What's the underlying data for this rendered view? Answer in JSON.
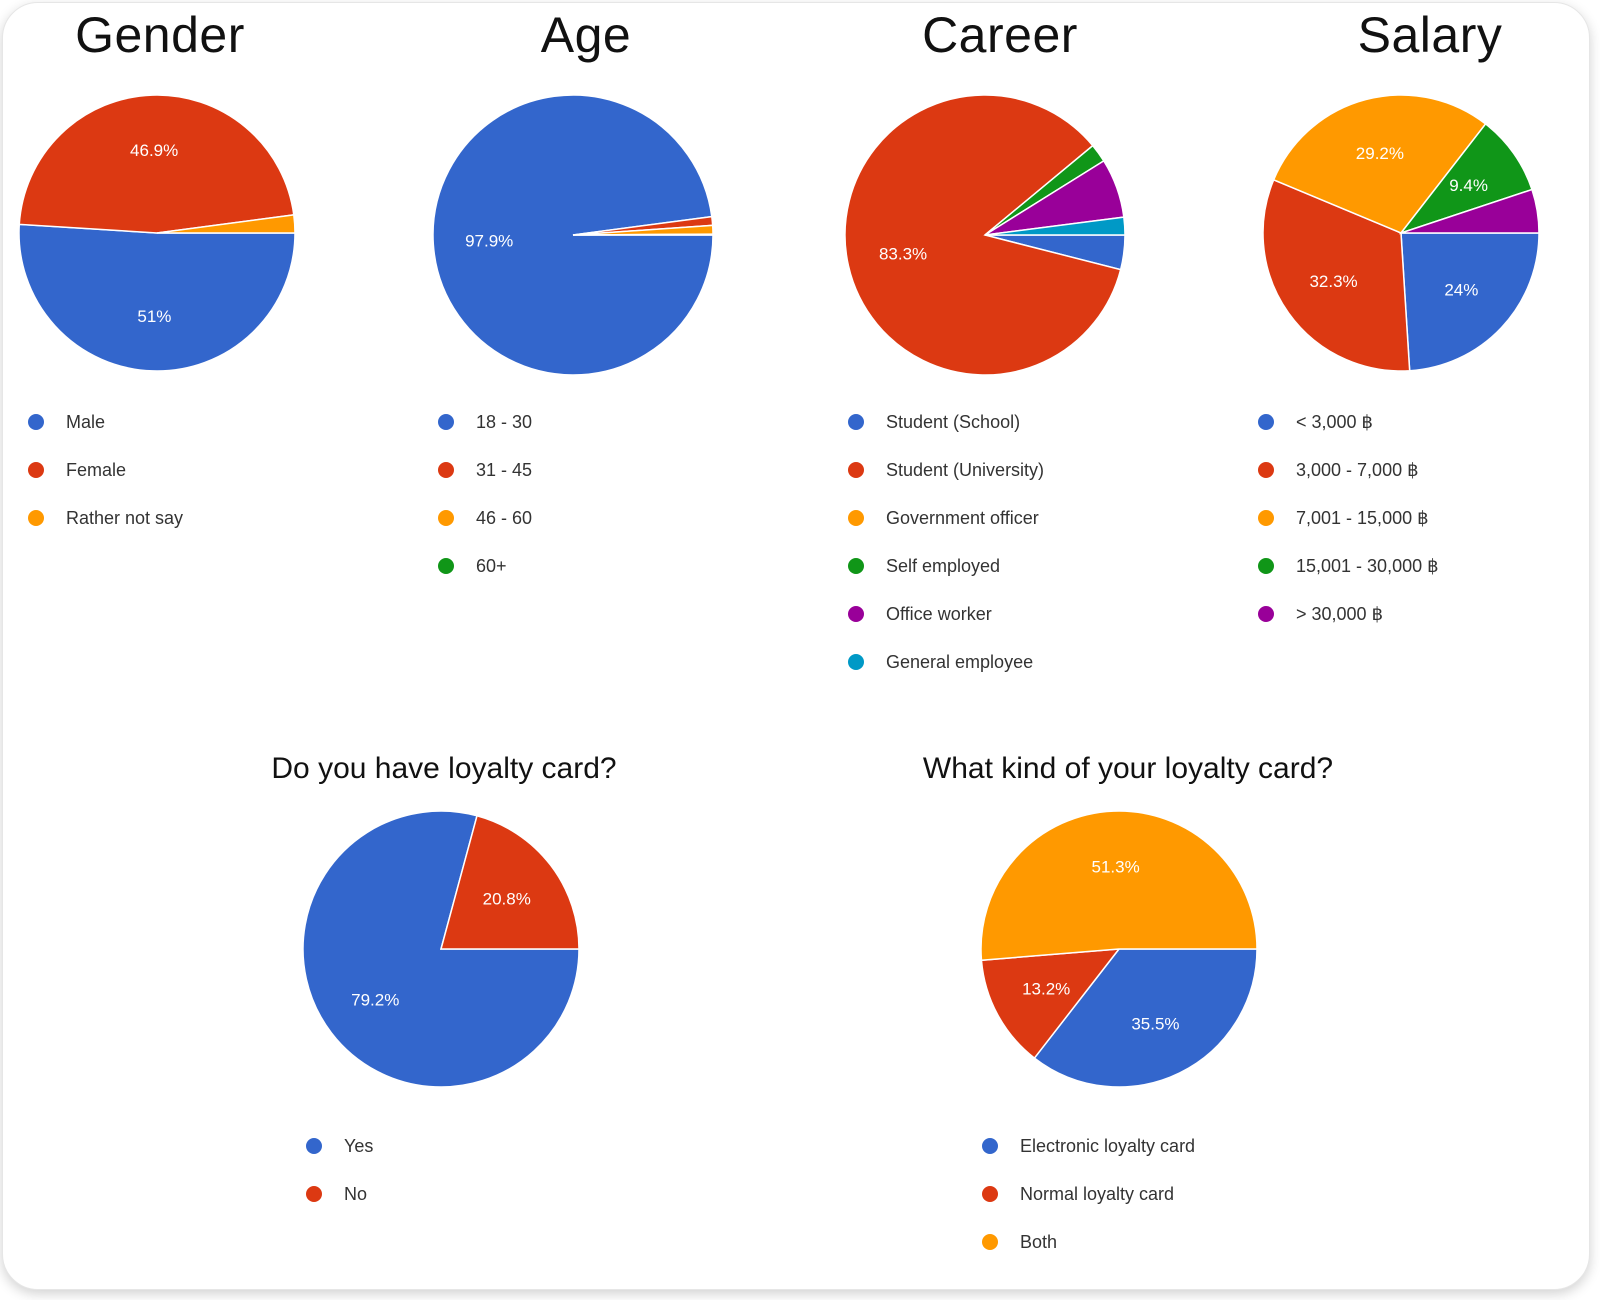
{
  "colors": {
    "blue": "#3366cc",
    "red": "#dc3912",
    "orange": "#ff9900",
    "green": "#109618",
    "purple": "#990099",
    "teal": "#0099c6"
  },
  "chart_data": [
    {
      "id": "gender",
      "type": "pie",
      "title": "Gender",
      "slices": [
        {
          "label": "Male",
          "value": 51.0,
          "pct_label": "51%",
          "color": "#3366cc"
        },
        {
          "label": "Female",
          "value": 46.9,
          "pct_label": "46.9%",
          "color": "#dc3912"
        },
        {
          "label": "Rather not say",
          "value": 2.1,
          "pct_label": "",
          "color": "#ff9900"
        }
      ]
    },
    {
      "id": "age",
      "type": "pie",
      "title": "Age",
      "slices": [
        {
          "label": "18 - 30",
          "value": 97.9,
          "pct_label": "97.9%",
          "color": "#3366cc"
        },
        {
          "label": "31 - 45",
          "value": 1.0,
          "pct_label": "",
          "color": "#dc3912"
        },
        {
          "label": "46 - 60",
          "value": 1.0,
          "pct_label": "",
          "color": "#ff9900"
        },
        {
          "label": "60+",
          "value": 0.1,
          "pct_label": "",
          "color": "#109618"
        }
      ]
    },
    {
      "id": "career",
      "type": "pie",
      "title": "Career",
      "slices": [
        {
          "label": "Student (School)",
          "value": 3.9,
          "pct_label": "",
          "color": "#3366cc"
        },
        {
          "label": "Student (University)",
          "value": 83.3,
          "pct_label": "83.3%",
          "color": "#dc3912"
        },
        {
          "label": "Government officer",
          "value": 0.0,
          "pct_label": "",
          "color": "#ff9900"
        },
        {
          "label": "Self  employed",
          "value": 2.1,
          "pct_label": "",
          "color": "#109618"
        },
        {
          "label": "Office worker",
          "value": 6.7,
          "pct_label": "",
          "color": "#990099"
        },
        {
          "label": "General employee",
          "value": 2.0,
          "pct_label": "",
          "color": "#0099c6"
        }
      ]
    },
    {
      "id": "salary",
      "type": "pie",
      "title": "Salary",
      "slices": [
        {
          "label": "< 3,000 ฿",
          "value": 24.0,
          "pct_label": "24%",
          "color": "#3366cc"
        },
        {
          "label": "3,000 - 7,000 ฿",
          "value": 32.3,
          "pct_label": "32.3%",
          "color": "#dc3912"
        },
        {
          "label": "7,001 - 15,000 ฿",
          "value": 29.2,
          "pct_label": "29.2%",
          "color": "#ff9900"
        },
        {
          "label": "15,001 - 30,000 ฿",
          "value": 9.4,
          "pct_label": "9.4%",
          "color": "#109618"
        },
        {
          "label": "> 30,000 ฿",
          "value": 5.1,
          "pct_label": "",
          "color": "#990099"
        }
      ]
    },
    {
      "id": "loyalty",
      "type": "pie",
      "title": "Do you have loyalty card?",
      "slices": [
        {
          "label": "Yes",
          "value": 79.2,
          "pct_label": "79.2%",
          "color": "#3366cc"
        },
        {
          "label": "No",
          "value": 20.8,
          "pct_label": "20.8%",
          "color": "#dc3912"
        }
      ]
    },
    {
      "id": "loyalty_kind",
      "type": "pie",
      "title": "What kind of your loyalty card?",
      "slices": [
        {
          "label": "Electronic loyalty card",
          "value": 35.5,
          "pct_label": "35.5%",
          "color": "#3366cc"
        },
        {
          "label": "Normal loyalty card",
          "value": 13.2,
          "pct_label": "13.2%",
          "color": "#dc3912"
        },
        {
          "label": "Both",
          "value": 51.3,
          "pct_label": "51.3%",
          "color": "#ff9900"
        }
      ]
    }
  ]
}
